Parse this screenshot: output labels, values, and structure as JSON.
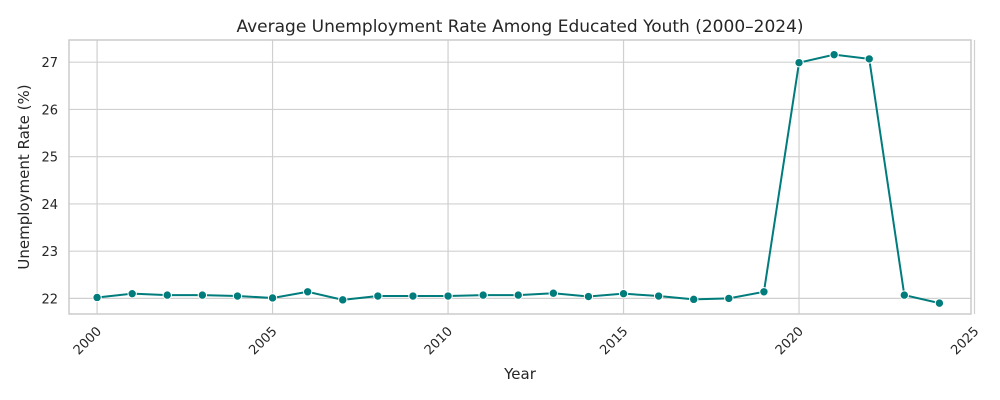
{
  "chart_data": {
    "type": "line",
    "title": "Average Unemployment Rate Among Educated Youth (2000–2024)",
    "xlabel": "Year",
    "ylabel": "Unemployment Rate (%)",
    "xlim": [
      1999.2,
      2024.9
    ],
    "ylim": [
      21.67,
      27.47
    ],
    "x_ticks": [
      2000,
      2005,
      2010,
      2015,
      2020,
      2025
    ],
    "y_ticks": [
      22,
      23,
      24,
      25,
      26,
      27
    ],
    "grid": true,
    "color": "#007c7c",
    "series": [
      {
        "x": [
          2000,
          2001,
          2002,
          2003,
          2004,
          2005,
          2006,
          2007,
          2008,
          2009,
          2010,
          2011,
          2012,
          2013,
          2014,
          2015,
          2016,
          2017,
          2018,
          2019,
          2020,
          2021,
          2022,
          2023,
          2024
        ],
        "values": [
          22.02,
          22.1,
          22.07,
          22.07,
          22.05,
          22.01,
          22.14,
          21.97,
          22.05,
          22.05,
          22.05,
          22.07,
          22.07,
          22.11,
          22.04,
          22.1,
          22.05,
          21.98,
          22.0,
          22.14,
          26.99,
          27.16,
          27.07,
          22.07,
          21.9
        ]
      }
    ]
  }
}
